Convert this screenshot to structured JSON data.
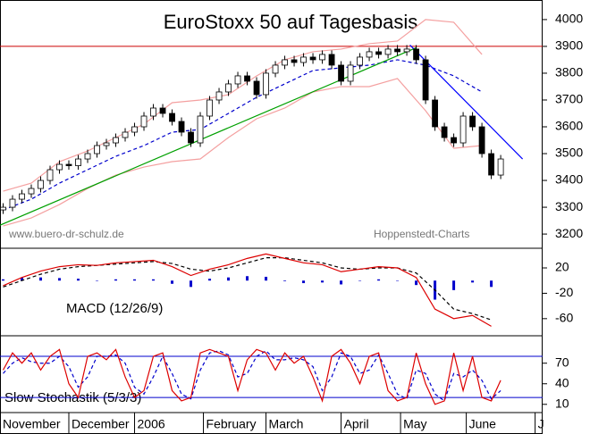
{
  "chart_data": [
    {
      "type": "candlestick",
      "title": "EuroStoxx 50 auf Tagesbasis",
      "annotations": [
        "www.buero-dr-schulz.de",
        "Hoppenstedt-Charts"
      ],
      "xlim": [
        -1,
        172.4
      ],
      "ylim": [
        3147,
        4073
      ],
      "yticks": [
        3200,
        3300,
        3400,
        3500,
        3600,
        3700,
        3800,
        3900,
        4000
      ],
      "hlines": [
        {
          "value": 3900,
          "color": "#cc0000"
        }
      ],
      "candles": {
        "x": [
          0,
          3,
          6,
          9,
          12,
          15,
          18,
          21,
          24,
          27,
          30,
          33,
          36,
          39,
          42,
          45,
          48,
          51,
          54,
          57,
          60,
          63,
          66,
          69,
          72,
          75,
          78,
          81,
          84,
          87,
          90,
          93,
          96,
          99,
          102,
          105,
          108,
          111,
          114,
          117,
          120,
          123,
          126,
          129,
          132,
          135,
          138,
          141,
          144,
          147,
          150,
          153,
          156,
          159
        ],
        "open": [
          3290,
          3300,
          3330,
          3350,
          3370,
          3400,
          3440,
          3460,
          3455,
          3480,
          3500,
          3530,
          3540,
          3560,
          3580,
          3600,
          3640,
          3670,
          3650,
          3620,
          3580,
          3540,
          3640,
          3700,
          3730,
          3760,
          3790,
          3770,
          3720,
          3800,
          3830,
          3850,
          3840,
          3860,
          3850,
          3870,
          3830,
          3770,
          3830,
          3860,
          3880,
          3870,
          3890,
          3880,
          3890,
          3850,
          3700,
          3600,
          3560,
          3540,
          3640,
          3600,
          3500,
          3420
        ],
        "high": [
          3315,
          3345,
          3365,
          3385,
          3415,
          3455,
          3475,
          3475,
          3495,
          3515,
          3545,
          3555,
          3575,
          3595,
          3615,
          3655,
          3685,
          3685,
          3665,
          3635,
          3595,
          3655,
          3715,
          3745,
          3775,
          3805,
          3805,
          3785,
          3815,
          3845,
          3865,
          3865,
          3875,
          3875,
          3885,
          3885,
          3845,
          3845,
          3875,
          3895,
          3895,
          3905,
          3905,
          3905,
          3905,
          3865,
          3715,
          3615,
          3575,
          3655,
          3655,
          3615,
          3515,
          3495
        ],
        "low": [
          3275,
          3285,
          3315,
          3335,
          3355,
          3385,
          3425,
          3440,
          3440,
          3465,
          3485,
          3515,
          3525,
          3545,
          3565,
          3585,
          3625,
          3635,
          3605,
          3565,
          3525,
          3525,
          3625,
          3685,
          3715,
          3745,
          3755,
          3705,
          3705,
          3785,
          3815,
          3825,
          3825,
          3835,
          3835,
          3815,
          3755,
          3755,
          3815,
          3845,
          3855,
          3855,
          3865,
          3865,
          3835,
          3685,
          3585,
          3545,
          3525,
          3525,
          3585,
          3485,
          3405,
          3405
        ],
        "close": [
          3300,
          3330,
          3350,
          3370,
          3400,
          3440,
          3460,
          3455,
          3480,
          3500,
          3530,
          3540,
          3560,
          3580,
          3600,
          3640,
          3670,
          3650,
          3620,
          3580,
          3540,
          3640,
          3700,
          3730,
          3760,
          3790,
          3770,
          3720,
          3800,
          3830,
          3850,
          3840,
          3860,
          3850,
          3870,
          3830,
          3770,
          3830,
          3860,
          3880,
          3870,
          3890,
          3880,
          3890,
          3850,
          3700,
          3600,
          3560,
          3540,
          3640,
          3600,
          3500,
          3420,
          3480
        ]
      },
      "series": [
        {
          "color": "#f4a0a0",
          "style": "solid",
          "x": [
            0,
            9,
            18,
            27,
            36,
            45,
            54,
            63,
            72,
            81,
            90,
            99,
            108,
            117,
            126,
            135,
            144,
            153
          ],
          "values": [
            3360,
            3390,
            3470,
            3510,
            3560,
            3610,
            3690,
            3700,
            3720,
            3790,
            3850,
            3880,
            3890,
            3910,
            3920,
            4000,
            3990,
            3870
          ]
        },
        {
          "color": "#f4a0a0",
          "style": "solid",
          "x": [
            0,
            9,
            18,
            27,
            36,
            45,
            54,
            63,
            72,
            81,
            90,
            99,
            108,
            117,
            126,
            135,
            144,
            153
          ],
          "values": [
            3230,
            3260,
            3310,
            3370,
            3420,
            3450,
            3470,
            3480,
            3560,
            3630,
            3670,
            3730,
            3750,
            3750,
            3780,
            3660,
            3520,
            3530
          ]
        },
        {
          "color": "#0000cc",
          "style": "dashed",
          "x": [
            0,
            9,
            18,
            27,
            36,
            45,
            54,
            63,
            72,
            81,
            90,
            99,
            108,
            117,
            126,
            135,
            144,
            153
          ],
          "values": [
            3290,
            3330,
            3390,
            3440,
            3490,
            3530,
            3580,
            3590,
            3650,
            3710,
            3760,
            3810,
            3820,
            3830,
            3850,
            3830,
            3790,
            3730
          ]
        },
        {
          "color": "#00a000",
          "style": "solid",
          "x": [
            -1,
            132
          ],
          "values": [
            3233,
            3895
          ]
        },
        {
          "color": "#0000ff",
          "style": "solid",
          "x": [
            130,
            166
          ],
          "values": [
            3905,
            3480
          ]
        }
      ]
    },
    {
      "type": "line",
      "label": "MACD (12/26/9)",
      "xlim": [
        -1,
        172.4
      ],
      "ylim": [
        -87,
        51
      ],
      "yticks": [
        20,
        -20,
        -60
      ],
      "series": [
        {
          "color": "#0000cc",
          "style": "bar",
          "x": [
            0,
            6,
            12,
            18,
            24,
            30,
            36,
            42,
            48,
            54,
            60,
            66,
            72,
            78,
            84,
            90,
            96,
            102,
            108,
            114,
            120,
            126,
            132,
            138,
            144,
            150,
            156
          ],
          "values": [
            2,
            5,
            5,
            4,
            3,
            0,
            2,
            2,
            2,
            -5,
            -10,
            3,
            5,
            7,
            6,
            -1,
            -4,
            -3,
            -6,
            0,
            2,
            0,
            -7,
            -30,
            -15,
            -3,
            -10
          ]
        },
        {
          "color": "#000000",
          "style": "dashed",
          "x": [
            0,
            6,
            12,
            18,
            24,
            30,
            36,
            42,
            48,
            54,
            60,
            66,
            72,
            78,
            84,
            90,
            96,
            102,
            108,
            114,
            120,
            126,
            132,
            138,
            144,
            150,
            156
          ],
          "values": [
            -10,
            0,
            10,
            18,
            22,
            24,
            26,
            28,
            30,
            27,
            18,
            15,
            20,
            28,
            36,
            36,
            32,
            28,
            20,
            18,
            20,
            20,
            12,
            -15,
            -45,
            -52,
            -62
          ]
        },
        {
          "color": "#dd0000",
          "style": "solid",
          "x": [
            0,
            6,
            12,
            18,
            24,
            30,
            36,
            42,
            48,
            54,
            60,
            66,
            72,
            78,
            84,
            90,
            96,
            102,
            108,
            114,
            120,
            126,
            132,
            138,
            144,
            150,
            156
          ],
          "values": [
            -8,
            5,
            15,
            22,
            25,
            24,
            28,
            30,
            32,
            22,
            8,
            18,
            25,
            35,
            42,
            35,
            28,
            25,
            14,
            18,
            22,
            20,
            5,
            -45,
            -60,
            -55,
            -72
          ]
        }
      ]
    },
    {
      "type": "line",
      "label": "Slow Stochastik (5/3/3)",
      "xlim": [
        -1,
        172.4
      ],
      "ylim": [
        -2,
        110
      ],
      "yticks": [
        70,
        40,
        10
      ],
      "hlines": [
        {
          "value": 80,
          "color": "#0000cc"
        },
        {
          "value": 20,
          "color": "#0000cc"
        }
      ],
      "xticks": [
        {
          "value": -1,
          "label": "November"
        },
        {
          "value": 21,
          "label": "December"
        },
        {
          "value": 42,
          "label": "2006"
        },
        {
          "value": 64,
          "label": "February"
        },
        {
          "value": 84,
          "label": "March"
        },
        {
          "value": 108,
          "label": "April"
        },
        {
          "value": 127,
          "label": "May"
        },
        {
          "value": 148,
          "label": "June"
        },
        {
          "value": 170,
          "label": "J"
        }
      ],
      "series": [
        {
          "color": "#0000cc",
          "style": "dashed",
          "x": [
            0,
            3,
            6,
            9,
            12,
            15,
            18,
            21,
            24,
            27,
            30,
            33,
            36,
            39,
            42,
            45,
            48,
            51,
            54,
            57,
            60,
            63,
            66,
            69,
            72,
            75,
            78,
            81,
            84,
            87,
            90,
            93,
            96,
            99,
            102,
            105,
            108,
            111,
            114,
            117,
            120,
            123,
            126,
            129,
            132,
            135,
            138,
            141,
            144,
            147,
            150,
            153,
            156,
            159
          ],
          "values": [
            55,
            70,
            78,
            72,
            70,
            70,
            80,
            65,
            35,
            50,
            80,
            80,
            82,
            70,
            35,
            25,
            50,
            80,
            55,
            25,
            18,
            60,
            85,
            88,
            82,
            50,
            55,
            80,
            88,
            75,
            75,
            78,
            75,
            65,
            30,
            50,
            85,
            80,
            55,
            60,
            82,
            55,
            25,
            18,
            60,
            55,
            25,
            15,
            55,
            50,
            60,
            45,
            18,
            30
          ]
        },
        {
          "color": "#dd0000",
          "style": "solid",
          "x": [
            0,
            3,
            6,
            9,
            12,
            15,
            18,
            21,
            24,
            27,
            30,
            33,
            36,
            39,
            42,
            45,
            48,
            51,
            54,
            57,
            60,
            63,
            66,
            69,
            72,
            75,
            78,
            81,
            84,
            87,
            90,
            93,
            96,
            99,
            102,
            105,
            108,
            111,
            114,
            117,
            120,
            123,
            126,
            129,
            132,
            135,
            138,
            141,
            144,
            147,
            150,
            153,
            156,
            159
          ],
          "values": [
            60,
            85,
            70,
            85,
            60,
            80,
            90,
            40,
            20,
            80,
            85,
            75,
            90,
            50,
            20,
            30,
            80,
            85,
            30,
            15,
            20,
            85,
            90,
            85,
            80,
            30,
            75,
            90,
            85,
            60,
            85,
            70,
            80,
            50,
            15,
            80,
            90,
            70,
            40,
            80,
            85,
            30,
            15,
            20,
            85,
            40,
            10,
            15,
            85,
            30,
            80,
            20,
            15,
            45
          ]
        }
      ]
    }
  ]
}
